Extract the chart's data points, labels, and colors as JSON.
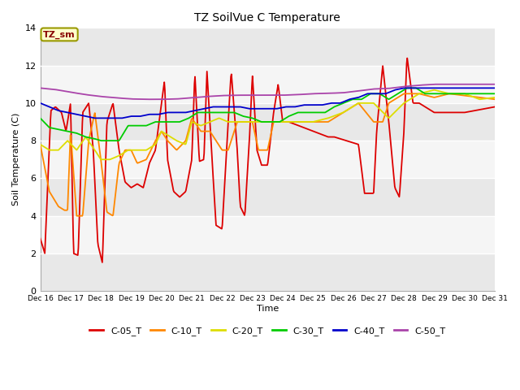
{
  "title": "TZ SoilVue C Temperature",
  "xlabel": "Time",
  "ylabel": "Soil Temperature (C)",
  "ylim": [
    0,
    14
  ],
  "yticks": [
    0,
    2,
    4,
    6,
    8,
    10,
    12,
    14
  ],
  "xlim": [
    0,
    15
  ],
  "xtick_labels": [
    "Dec 16",
    "Dec 17",
    "Dec 18",
    "Dec 19",
    "Dec 20",
    "Dec 21",
    "Dec 22",
    "Dec 23",
    "Dec 24",
    "Dec 25",
    "Dec 26",
    "Dec 27",
    "Dec 28",
    "Dec 29",
    "Dec 30",
    "Dec 31"
  ],
  "background_color": "#ffffff",
  "plot_bg_alt1": "#e8e8e8",
  "plot_bg_alt2": "#f5f5f5",
  "annotation_text": "TZ_sm",
  "annotation_bg": "#ffffcc",
  "annotation_border": "#999900",
  "series": {
    "C-05_T": {
      "color": "#dd0000"
    },
    "C-10_T": {
      "color": "#ff8800"
    },
    "C-20_T": {
      "color": "#dddd00"
    },
    "C-30_T": {
      "color": "#00cc00"
    },
    "C-40_T": {
      "color": "#0000cc"
    },
    "C-50_T": {
      "color": "#aa44aa"
    }
  },
  "c05_pts": [
    [
      0,
      2.8
    ],
    [
      0.15,
      2.0
    ],
    [
      0.35,
      9.6
    ],
    [
      0.5,
      9.8
    ],
    [
      0.7,
      9.5
    ],
    [
      0.85,
      8.5
    ],
    [
      1.0,
      10.0
    ],
    [
      1.1,
      2.0
    ],
    [
      1.25,
      1.9
    ],
    [
      1.4,
      9.5
    ],
    [
      1.6,
      10.0
    ],
    [
      1.75,
      7.5
    ],
    [
      1.9,
      2.5
    ],
    [
      2.05,
      1.5
    ],
    [
      2.2,
      9.0
    ],
    [
      2.4,
      10.0
    ],
    [
      2.6,
      7.5
    ],
    [
      2.8,
      5.8
    ],
    [
      3.0,
      5.5
    ],
    [
      3.2,
      5.7
    ],
    [
      3.4,
      5.5
    ],
    [
      3.6,
      6.8
    ],
    [
      3.8,
      7.5
    ],
    [
      4.0,
      10.0
    ],
    [
      4.1,
      11.2
    ],
    [
      4.2,
      7.0
    ],
    [
      4.4,
      5.3
    ],
    [
      4.6,
      5.0
    ],
    [
      4.8,
      5.3
    ],
    [
      5.0,
      7.0
    ],
    [
      5.1,
      11.6
    ],
    [
      5.25,
      6.9
    ],
    [
      5.4,
      7.0
    ],
    [
      5.5,
      11.7
    ],
    [
      5.65,
      7.5
    ],
    [
      5.8,
      3.5
    ],
    [
      6.0,
      3.3
    ],
    [
      6.2,
      9.0
    ],
    [
      6.3,
      11.7
    ],
    [
      6.5,
      7.5
    ],
    [
      6.6,
      4.5
    ],
    [
      6.75,
      4.0
    ],
    [
      6.9,
      8.0
    ],
    [
      7.0,
      11.5
    ],
    [
      7.15,
      7.5
    ],
    [
      7.3,
      6.7
    ],
    [
      7.5,
      6.7
    ],
    [
      7.7,
      9.5
    ],
    [
      7.85,
      11.0
    ],
    [
      8.0,
      9.0
    ],
    [
      8.2,
      9.0
    ],
    [
      9.5,
      8.2
    ],
    [
      9.7,
      8.2
    ],
    [
      10.5,
      7.8
    ],
    [
      10.7,
      5.2
    ],
    [
      11.0,
      5.2
    ],
    [
      11.1,
      8.5
    ],
    [
      11.3,
      12.0
    ],
    [
      11.5,
      9.0
    ],
    [
      11.7,
      5.5
    ],
    [
      11.85,
      5.0
    ],
    [
      12.0,
      8.5
    ],
    [
      12.1,
      12.5
    ],
    [
      12.3,
      10.0
    ],
    [
      12.5,
      10.0
    ],
    [
      13.0,
      9.5
    ],
    [
      14.0,
      9.5
    ],
    [
      15.0,
      9.8
    ]
  ],
  "c10_pts": [
    [
      0,
      7.8
    ],
    [
      0.3,
      5.3
    ],
    [
      0.6,
      4.5
    ],
    [
      0.8,
      4.3
    ],
    [
      0.9,
      4.3
    ],
    [
      1.0,
      8.5
    ],
    [
      1.2,
      4.0
    ],
    [
      1.4,
      4.0
    ],
    [
      1.6,
      8.0
    ],
    [
      1.8,
      9.5
    ],
    [
      2.0,
      7.0
    ],
    [
      2.2,
      4.2
    ],
    [
      2.4,
      4.0
    ],
    [
      2.6,
      6.8
    ],
    [
      2.8,
      7.5
    ],
    [
      3.0,
      7.5
    ],
    [
      3.2,
      6.8
    ],
    [
      3.5,
      7.0
    ],
    [
      3.8,
      8.0
    ],
    [
      4.0,
      8.5
    ],
    [
      4.2,
      8.0
    ],
    [
      4.5,
      7.5
    ],
    [
      4.8,
      8.0
    ],
    [
      5.0,
      9.2
    ],
    [
      5.3,
      8.5
    ],
    [
      5.6,
      8.5
    ],
    [
      5.8,
      8.0
    ],
    [
      6.0,
      7.5
    ],
    [
      6.2,
      7.5
    ],
    [
      6.5,
      9.0
    ],
    [
      6.7,
      9.0
    ],
    [
      7.0,
      9.0
    ],
    [
      7.2,
      7.5
    ],
    [
      7.5,
      7.5
    ],
    [
      7.7,
      9.0
    ],
    [
      8.0,
      9.0
    ],
    [
      8.3,
      9.0
    ],
    [
      8.5,
      9.0
    ],
    [
      9.0,
      9.0
    ],
    [
      9.5,
      9.0
    ],
    [
      10.0,
      9.5
    ],
    [
      10.5,
      10.0
    ],
    [
      11.0,
      9.0
    ],
    [
      11.3,
      9.0
    ],
    [
      11.5,
      10.0
    ],
    [
      12.0,
      10.5
    ],
    [
      12.3,
      10.5
    ],
    [
      12.5,
      10.5
    ],
    [
      13.0,
      10.3
    ],
    [
      13.5,
      10.5
    ],
    [
      14.0,
      10.4
    ],
    [
      14.5,
      10.3
    ],
    [
      15.0,
      10.2
    ]
  ],
  "c20_pts": [
    [
      0,
      7.8
    ],
    [
      0.3,
      7.5
    ],
    [
      0.6,
      7.5
    ],
    [
      0.9,
      8.0
    ],
    [
      1.2,
      7.5
    ],
    [
      1.5,
      8.2
    ],
    [
      1.8,
      7.5
    ],
    [
      2.0,
      7.0
    ],
    [
      2.3,
      7.0
    ],
    [
      2.6,
      7.2
    ],
    [
      2.9,
      7.5
    ],
    [
      3.2,
      7.5
    ],
    [
      3.5,
      7.5
    ],
    [
      3.8,
      7.8
    ],
    [
      4.0,
      8.5
    ],
    [
      4.2,
      8.3
    ],
    [
      4.5,
      8.0
    ],
    [
      4.8,
      7.8
    ],
    [
      5.0,
      9.0
    ],
    [
      5.3,
      8.8
    ],
    [
      5.6,
      9.0
    ],
    [
      5.9,
      9.2
    ],
    [
      6.2,
      9.0
    ],
    [
      6.5,
      9.0
    ],
    [
      6.8,
      9.0
    ],
    [
      7.0,
      9.0
    ],
    [
      7.3,
      9.0
    ],
    [
      7.6,
      9.0
    ],
    [
      8.0,
      9.0
    ],
    [
      8.5,
      9.0
    ],
    [
      9.0,
      9.0
    ],
    [
      9.5,
      9.2
    ],
    [
      10.0,
      9.5
    ],
    [
      10.5,
      10.0
    ],
    [
      11.0,
      10.0
    ],
    [
      11.5,
      9.2
    ],
    [
      12.0,
      10.0
    ],
    [
      12.5,
      10.5
    ],
    [
      13.0,
      10.7
    ],
    [
      13.5,
      10.5
    ],
    [
      14.0,
      10.5
    ],
    [
      14.5,
      10.2
    ],
    [
      15.0,
      10.3
    ]
  ],
  "c30_pts": [
    [
      0,
      9.2
    ],
    [
      0.3,
      8.7
    ],
    [
      0.6,
      8.6
    ],
    [
      0.9,
      8.5
    ],
    [
      1.2,
      8.4
    ],
    [
      1.5,
      8.2
    ],
    [
      1.8,
      8.1
    ],
    [
      2.0,
      8.0
    ],
    [
      2.3,
      8.0
    ],
    [
      2.6,
      8.0
    ],
    [
      2.9,
      8.8
    ],
    [
      3.2,
      8.8
    ],
    [
      3.5,
      8.8
    ],
    [
      3.8,
      9.0
    ],
    [
      4.0,
      9.0
    ],
    [
      4.3,
      9.0
    ],
    [
      4.6,
      9.0
    ],
    [
      4.9,
      9.2
    ],
    [
      5.2,
      9.5
    ],
    [
      5.5,
      9.5
    ],
    [
      5.8,
      9.5
    ],
    [
      6.1,
      9.5
    ],
    [
      6.4,
      9.5
    ],
    [
      6.7,
      9.3
    ],
    [
      7.0,
      9.2
    ],
    [
      7.3,
      9.0
    ],
    [
      7.6,
      9.0
    ],
    [
      7.9,
      9.0
    ],
    [
      8.2,
      9.3
    ],
    [
      8.5,
      9.5
    ],
    [
      8.8,
      9.5
    ],
    [
      9.1,
      9.5
    ],
    [
      9.4,
      9.5
    ],
    [
      9.7,
      9.8
    ],
    [
      10.0,
      10.0
    ],
    [
      10.3,
      10.2
    ],
    [
      10.6,
      10.2
    ],
    [
      10.9,
      10.5
    ],
    [
      11.2,
      10.5
    ],
    [
      11.5,
      10.2
    ],
    [
      11.8,
      10.5
    ],
    [
      12.1,
      10.8
    ],
    [
      12.4,
      10.8
    ],
    [
      12.7,
      10.5
    ],
    [
      13.0,
      10.5
    ],
    [
      13.5,
      10.5
    ],
    [
      14.0,
      10.5
    ],
    [
      14.5,
      10.5
    ],
    [
      15.0,
      10.5
    ]
  ],
  "c40_pts": [
    [
      0,
      10.0
    ],
    [
      0.3,
      9.8
    ],
    [
      0.6,
      9.6
    ],
    [
      0.9,
      9.5
    ],
    [
      1.2,
      9.4
    ],
    [
      1.5,
      9.3
    ],
    [
      1.8,
      9.2
    ],
    [
      2.1,
      9.2
    ],
    [
      2.4,
      9.2
    ],
    [
      2.7,
      9.2
    ],
    [
      3.0,
      9.3
    ],
    [
      3.3,
      9.3
    ],
    [
      3.6,
      9.4
    ],
    [
      3.9,
      9.4
    ],
    [
      4.2,
      9.5
    ],
    [
      4.5,
      9.5
    ],
    [
      4.8,
      9.5
    ],
    [
      5.1,
      9.6
    ],
    [
      5.4,
      9.7
    ],
    [
      5.7,
      9.8
    ],
    [
      6.0,
      9.8
    ],
    [
      6.3,
      9.8
    ],
    [
      6.6,
      9.8
    ],
    [
      6.9,
      9.7
    ],
    [
      7.2,
      9.7
    ],
    [
      7.5,
      9.7
    ],
    [
      7.8,
      9.7
    ],
    [
      8.1,
      9.8
    ],
    [
      8.4,
      9.8
    ],
    [
      8.7,
      9.9
    ],
    [
      9.0,
      9.9
    ],
    [
      9.3,
      9.9
    ],
    [
      9.6,
      10.0
    ],
    [
      9.9,
      10.0
    ],
    [
      10.2,
      10.2
    ],
    [
      10.5,
      10.3
    ],
    [
      10.8,
      10.5
    ],
    [
      11.1,
      10.5
    ],
    [
      11.4,
      10.5
    ],
    [
      11.7,
      10.7
    ],
    [
      12.0,
      10.8
    ],
    [
      12.3,
      10.8
    ],
    [
      12.6,
      10.8
    ],
    [
      12.9,
      10.8
    ],
    [
      13.2,
      10.8
    ],
    [
      13.5,
      10.8
    ],
    [
      13.8,
      10.8
    ],
    [
      14.1,
      10.8
    ],
    [
      14.4,
      10.8
    ],
    [
      14.7,
      10.8
    ],
    [
      15.0,
      10.8
    ]
  ],
  "c50_pts": [
    [
      0,
      10.8
    ],
    [
      0.5,
      10.72
    ],
    [
      1.0,
      10.58
    ],
    [
      1.5,
      10.45
    ],
    [
      2.0,
      10.35
    ],
    [
      2.5,
      10.28
    ],
    [
      3.0,
      10.22
    ],
    [
      3.5,
      10.2
    ],
    [
      4.0,
      10.2
    ],
    [
      4.5,
      10.22
    ],
    [
      5.0,
      10.28
    ],
    [
      5.5,
      10.35
    ],
    [
      6.0,
      10.4
    ],
    [
      6.5,
      10.42
    ],
    [
      7.0,
      10.42
    ],
    [
      7.5,
      10.42
    ],
    [
      8.0,
      10.42
    ],
    [
      8.5,
      10.45
    ],
    [
      9.0,
      10.5
    ],
    [
      9.5,
      10.52
    ],
    [
      10.0,
      10.55
    ],
    [
      10.5,
      10.65
    ],
    [
      11.0,
      10.75
    ],
    [
      11.5,
      10.78
    ],
    [
      12.0,
      10.88
    ],
    [
      12.5,
      10.95
    ],
    [
      13.0,
      11.0
    ],
    [
      13.5,
      11.0
    ],
    [
      14.0,
      11.0
    ],
    [
      14.5,
      11.0
    ],
    [
      15.0,
      11.0
    ]
  ]
}
